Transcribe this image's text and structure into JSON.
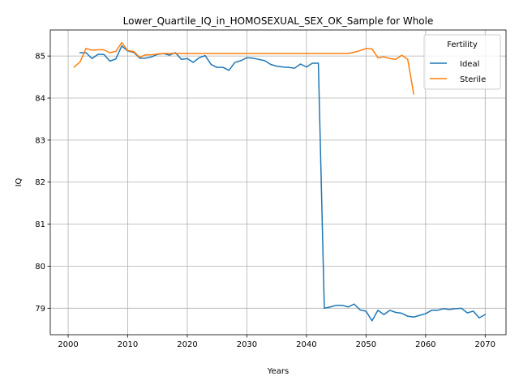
{
  "chart_data": {
    "type": "line",
    "title": "Lower_Quartile_IQ_in_HOMOSEXUAL_SEX_OK_Sample for Whole",
    "xlabel": "Years",
    "ylabel": "IQ",
    "xlim": [
      1997,
      2073.5
    ],
    "ylim": [
      78.37,
      85.62
    ],
    "xticks": [
      "2000",
      "2010",
      "2020",
      "2030",
      "2040",
      "2050",
      "2060",
      "2070"
    ],
    "yticks": [
      "79",
      "80",
      "81",
      "82",
      "83",
      "84",
      "85"
    ],
    "grid": true,
    "legend": {
      "title": "Fertility",
      "placement": "top-right"
    },
    "series": [
      {
        "name": "Ideal",
        "color": "#1f77b4",
        "x": [
          2002,
          2003,
          2004,
          2005,
          2006,
          2007,
          2008,
          2009,
          2010,
          2011,
          2012,
          2013,
          2014,
          2015,
          2016,
          2017,
          2018,
          2019,
          2020,
          2021,
          2022,
          2023,
          2024,
          2025,
          2026,
          2027,
          2028,
          2029,
          2030,
          2031,
          2032,
          2033,
          2034,
          2035,
          2036,
          2037,
          2038,
          2039,
          2040,
          2041,
          2042,
          2043,
          2044,
          2045,
          2046,
          2047,
          2048,
          2049,
          2050,
          2051,
          2052,
          2053,
          2054,
          2055,
          2056,
          2057,
          2058,
          2059,
          2060,
          2061,
          2062,
          2063,
          2064,
          2065,
          2066,
          2067,
          2068,
          2069,
          2070
        ],
        "values": [
          85.08,
          85.08,
          84.94,
          85.04,
          85.04,
          84.88,
          84.93,
          85.24,
          85.12,
          85.09,
          84.95,
          84.95,
          84.98,
          85.04,
          85.06,
          85.02,
          85.08,
          84.92,
          84.94,
          84.85,
          84.96,
          85.01,
          84.8,
          84.73,
          84.73,
          84.66,
          84.85,
          84.89,
          84.96,
          84.95,
          84.92,
          84.89,
          84.8,
          84.76,
          84.74,
          84.73,
          84.71,
          84.81,
          84.74,
          84.83,
          84.83,
          79.0,
          79.03,
          79.07,
          79.07,
          79.03,
          79.1,
          78.96,
          78.93,
          78.7,
          78.95,
          78.85,
          78.95,
          78.9,
          78.88,
          78.81,
          78.79,
          78.83,
          78.87,
          78.95,
          78.95,
          78.99,
          78.97,
          78.99,
          79.0,
          78.89,
          78.93,
          78.77,
          78.85
        ]
      },
      {
        "name": "Sterile",
        "color": "#ff7f0e",
        "x": [
          2001,
          2002,
          2003,
          2004,
          2005,
          2006,
          2007,
          2008,
          2009,
          2010,
          2011,
          2012,
          2013,
          2014,
          2015,
          2016,
          2017,
          2018,
          2019,
          2020,
          2025,
          2030,
          2035,
          2040,
          2045,
          2047,
          2048,
          2049,
          2050,
          2051,
          2052,
          2053,
          2054,
          2055,
          2056,
          2057,
          2058
        ],
        "values": [
          84.74,
          84.86,
          85.18,
          85.14,
          85.15,
          85.15,
          85.08,
          85.11,
          85.32,
          85.13,
          85.11,
          84.97,
          85.03,
          85.03,
          85.05,
          85.06,
          85.06,
          85.06,
          85.06,
          85.06,
          85.06,
          85.06,
          85.06,
          85.06,
          85.06,
          85.06,
          85.09,
          85.13,
          85.18,
          85.17,
          84.96,
          84.98,
          84.94,
          84.92,
          85.02,
          84.92,
          84.1
        ]
      }
    ]
  }
}
